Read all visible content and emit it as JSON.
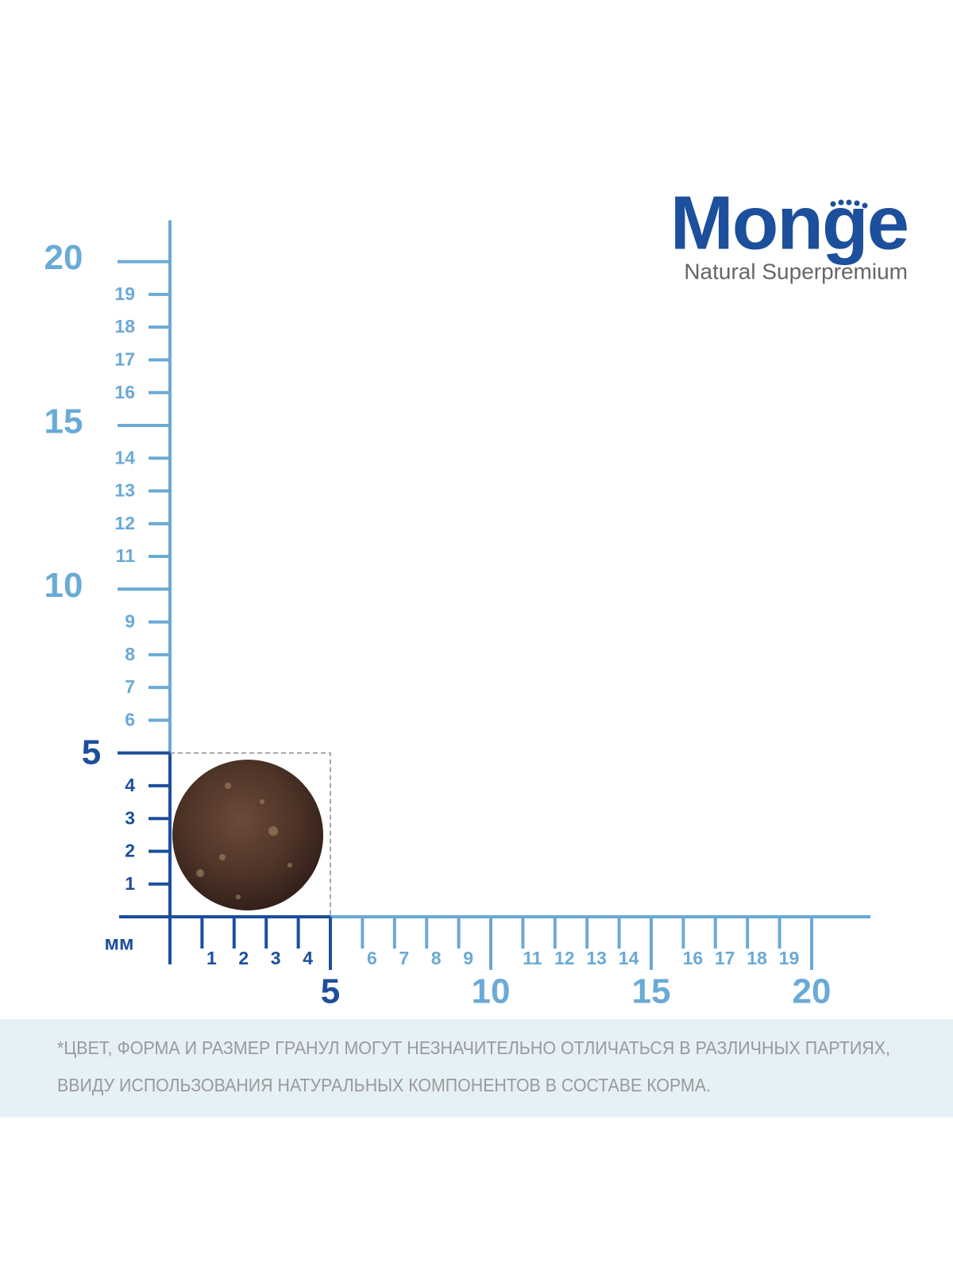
{
  "logo": {
    "brand": "Monge",
    "tagline": "Natural Superpremium"
  },
  "ruler": {
    "unit": "мм",
    "vertical_ticks": [
      1,
      2,
      3,
      4,
      5,
      6,
      7,
      8,
      9,
      10,
      11,
      12,
      13,
      14,
      15,
      16,
      17,
      18,
      19,
      20
    ],
    "horizontal_ticks": [
      1,
      2,
      3,
      4,
      5,
      6,
      7,
      8,
      9,
      10,
      11,
      12,
      13,
      14,
      15,
      16,
      17,
      18,
      19,
      20
    ]
  },
  "footnote": {
    "lines": [
      "*ЦВЕТ, ФОРМА И РАЗМЕР ГРАНУЛ МОГУТ НЕЗНАЧИТЕЛЬНО ОТЛИЧАТЬСЯ В РАЗЛИЧНЫХ ПАРТИЯХ,",
      "ВВИДУ ИСПОЛЬЗОВАНИЯ НАТУРАЛЬНЫХ КОМПОНЕНТОВ В СОСТАВЕ КОРМА."
    ]
  }
}
